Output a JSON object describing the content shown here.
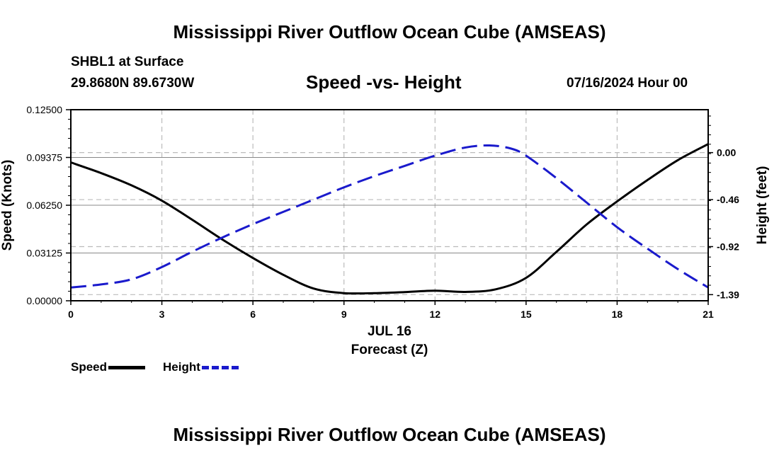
{
  "page": {
    "title_top": "Mississippi River Outflow Ocean Cube (AMSEAS)",
    "title_bottom": "Mississippi River Outflow Ocean Cube (AMSEAS)",
    "station": "SHBL1 at Surface",
    "coords": "29.8680N  89.6730W",
    "subtitle": "Speed -vs- Height",
    "datetime": "07/16/2024 Hour 00"
  },
  "chart_data": {
    "type": "line",
    "title": "Speed -vs- Height",
    "xlabel_date": "JUL 16",
    "xlabel": "Forecast (Z)",
    "ylabel_left": "Speed (Knots)",
    "ylabel_right": "Height (feet)",
    "xlim": [
      0,
      21
    ],
    "ylim_left": [
      0,
      0.125
    ],
    "ylim_right": [
      -1.45,
      0.42
    ],
    "x_ticks": [
      "0",
      "3",
      "6",
      "9",
      "12",
      "15",
      "18",
      "21"
    ],
    "y_left_ticks": [
      "0.00000",
      "0.03125",
      "0.06250",
      "0.09375",
      "0.12500"
    ],
    "y_right_ticks": [
      "0.00",
      "-0.46",
      "-0.92",
      "-1.39"
    ],
    "grid": true,
    "legend": "bottom-left",
    "series": [
      {
        "name": "Speed",
        "axis": "left",
        "color": "#000000",
        "style": "solid",
        "x": [
          0,
          1,
          2,
          3,
          4,
          5,
          6,
          7,
          8,
          9,
          10,
          11,
          12,
          13,
          14,
          15,
          16,
          17,
          18,
          19,
          20,
          21
        ],
        "values": [
          0.0905,
          0.0835,
          0.0755,
          0.0655,
          0.053,
          0.04,
          0.028,
          0.017,
          0.008,
          0.005,
          0.005,
          0.0057,
          0.0066,
          0.0058,
          0.0075,
          0.015,
          0.032,
          0.05,
          0.065,
          0.079,
          0.092,
          0.1025
        ]
      },
      {
        "name": "Height",
        "axis": "right",
        "color": "#1a1acc",
        "style": "dashed",
        "x": [
          0,
          1,
          2,
          3,
          4,
          5,
          6,
          7,
          8,
          9,
          10,
          11,
          12,
          13,
          13.8,
          14.5,
          15,
          16,
          17,
          18,
          19,
          20,
          21
        ],
        "values": [
          -1.32,
          -1.29,
          -1.24,
          -1.12,
          -0.97,
          -0.83,
          -0.7,
          -0.58,
          -0.46,
          -0.34,
          -0.23,
          -0.13,
          -0.03,
          0.05,
          0.07,
          0.04,
          -0.03,
          -0.25,
          -0.49,
          -0.73,
          -0.94,
          -1.14,
          -1.32
        ]
      }
    ]
  }
}
